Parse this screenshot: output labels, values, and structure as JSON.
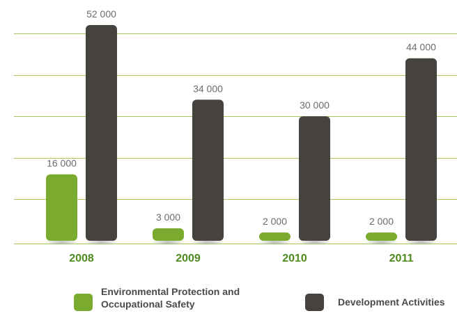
{
  "chart_data": {
    "type": "bar",
    "title": "",
    "xlabel": "",
    "ylabel": "",
    "categories": [
      "2008",
      "2009",
      "2010",
      "2011"
    ],
    "series": [
      {
        "name": "Environmental Protection and Occupational Safety",
        "values": [
          16000,
          3000,
          2000,
          2000
        ],
        "labels": [
          "16 000",
          "3 000",
          "2 000",
          "2 000"
        ],
        "color": "#7aaa2e"
      },
      {
        "name": "Development Activities",
        "values": [
          52000,
          34000,
          30000,
          44000
        ],
        "labels": [
          "52 000",
          "34 000",
          "30 000",
          "44 000"
        ],
        "color": "#46433f"
      }
    ],
    "ylim": [
      0,
      52000
    ],
    "grid": true,
    "y_axis_labels_shown": false,
    "legend_position": "bottom",
    "colors": {
      "gridline": "#a6c95c",
      "category_label": "#4f8a1f",
      "value_label": "#6b6b6b"
    }
  }
}
